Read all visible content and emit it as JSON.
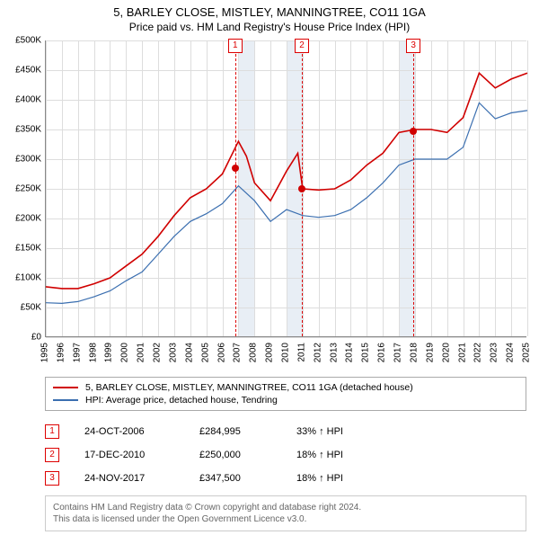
{
  "title": "5, BARLEY CLOSE, MISTLEY, MANNINGTREE, CO11 1GA",
  "subtitle": "Price paid vs. HM Land Registry's House Price Index (HPI)",
  "chart": {
    "type": "line",
    "ylim": [
      0,
      500000
    ],
    "ytick_step": 50000,
    "ytick_labels": [
      "£0",
      "£50K",
      "£100K",
      "£150K",
      "£200K",
      "£250K",
      "£300K",
      "£350K",
      "£400K",
      "£450K",
      "£500K"
    ],
    "x_years": [
      1995,
      1996,
      1997,
      1998,
      1999,
      2000,
      2001,
      2002,
      2003,
      2004,
      2005,
      2006,
      2007,
      2008,
      2009,
      2010,
      2011,
      2012,
      2013,
      2014,
      2015,
      2016,
      2017,
      2018,
      2019,
      2020,
      2021,
      2022,
      2023,
      2024,
      2025
    ],
    "background_color": "#ffffff",
    "grid_color": "#dddddd",
    "band_color": "#e8eef5",
    "bands": [
      [
        2007,
        2008
      ],
      [
        2010,
        2011
      ],
      [
        2017,
        2018
      ]
    ],
    "series": [
      {
        "name": "price_paid",
        "color": "#d00000",
        "width": 1.6,
        "data": [
          [
            1995,
            85000
          ],
          [
            1996,
            82000
          ],
          [
            1997,
            82000
          ],
          [
            1998,
            90000
          ],
          [
            1999,
            100000
          ],
          [
            2000,
            120000
          ],
          [
            2001,
            140000
          ],
          [
            2002,
            170000
          ],
          [
            2003,
            205000
          ],
          [
            2004,
            235000
          ],
          [
            2005,
            250000
          ],
          [
            2006,
            275000
          ],
          [
            2007,
            330000
          ],
          [
            2007.5,
            305000
          ],
          [
            2008,
            260000
          ],
          [
            2009,
            230000
          ],
          [
            2010,
            280000
          ],
          [
            2010.7,
            310000
          ],
          [
            2011,
            250000
          ],
          [
            2012,
            248000
          ],
          [
            2013,
            250000
          ],
          [
            2014,
            265000
          ],
          [
            2015,
            290000
          ],
          [
            2016,
            310000
          ],
          [
            2017,
            345000
          ],
          [
            2018,
            350000
          ],
          [
            2019,
            350000
          ],
          [
            2020,
            345000
          ],
          [
            2021,
            370000
          ],
          [
            2022,
            445000
          ],
          [
            2023,
            420000
          ],
          [
            2024,
            435000
          ],
          [
            2025,
            445000
          ]
        ]
      },
      {
        "name": "hpi",
        "color": "#3b6fb0",
        "width": 1.2,
        "data": [
          [
            1995,
            58000
          ],
          [
            1996,
            57000
          ],
          [
            1997,
            60000
          ],
          [
            1998,
            68000
          ],
          [
            1999,
            78000
          ],
          [
            2000,
            95000
          ],
          [
            2001,
            110000
          ],
          [
            2002,
            140000
          ],
          [
            2003,
            170000
          ],
          [
            2004,
            195000
          ],
          [
            2005,
            208000
          ],
          [
            2006,
            225000
          ],
          [
            2007,
            255000
          ],
          [
            2008,
            230000
          ],
          [
            2009,
            195000
          ],
          [
            2010,
            215000
          ],
          [
            2011,
            205000
          ],
          [
            2012,
            202000
          ],
          [
            2013,
            205000
          ],
          [
            2014,
            215000
          ],
          [
            2015,
            235000
          ],
          [
            2016,
            260000
          ],
          [
            2017,
            290000
          ],
          [
            2018,
            300000
          ],
          [
            2019,
            300000
          ],
          [
            2020,
            300000
          ],
          [
            2021,
            320000
          ],
          [
            2022,
            395000
          ],
          [
            2023,
            368000
          ],
          [
            2024,
            378000
          ],
          [
            2025,
            382000
          ]
        ]
      }
    ],
    "ref_lines": [
      {
        "n": "1",
        "year": 2006.8
      },
      {
        "n": "2",
        "year": 2010.95
      },
      {
        "n": "3",
        "year": 2017.9
      }
    ],
    "points": [
      {
        "year": 2006.8,
        "value": 284995,
        "color": "#d00000"
      },
      {
        "year": 2010.95,
        "value": 250000,
        "color": "#d00000"
      },
      {
        "year": 2017.9,
        "value": 347500,
        "color": "#d00000"
      }
    ]
  },
  "legend": {
    "s1": {
      "label": "5, BARLEY CLOSE, MISTLEY, MANNINGTREE, CO11 1GA (detached house)",
      "color": "#d00000"
    },
    "s2": {
      "label": "HPI: Average price, detached house, Tendring",
      "color": "#3b6fb0"
    }
  },
  "transactions": [
    {
      "n": "1",
      "date": "24-OCT-2006",
      "price": "£284,995",
      "pct": "33% ↑ HPI"
    },
    {
      "n": "2",
      "date": "17-DEC-2010",
      "price": "£250,000",
      "pct": "18% ↑ HPI"
    },
    {
      "n": "3",
      "date": "24-NOV-2017",
      "price": "£347,500",
      "pct": "18% ↑ HPI"
    }
  ],
  "footer": {
    "line1": "Contains HM Land Registry data © Crown copyright and database right 2024.",
    "line2": "This data is licensed under the Open Government Licence v3.0."
  }
}
